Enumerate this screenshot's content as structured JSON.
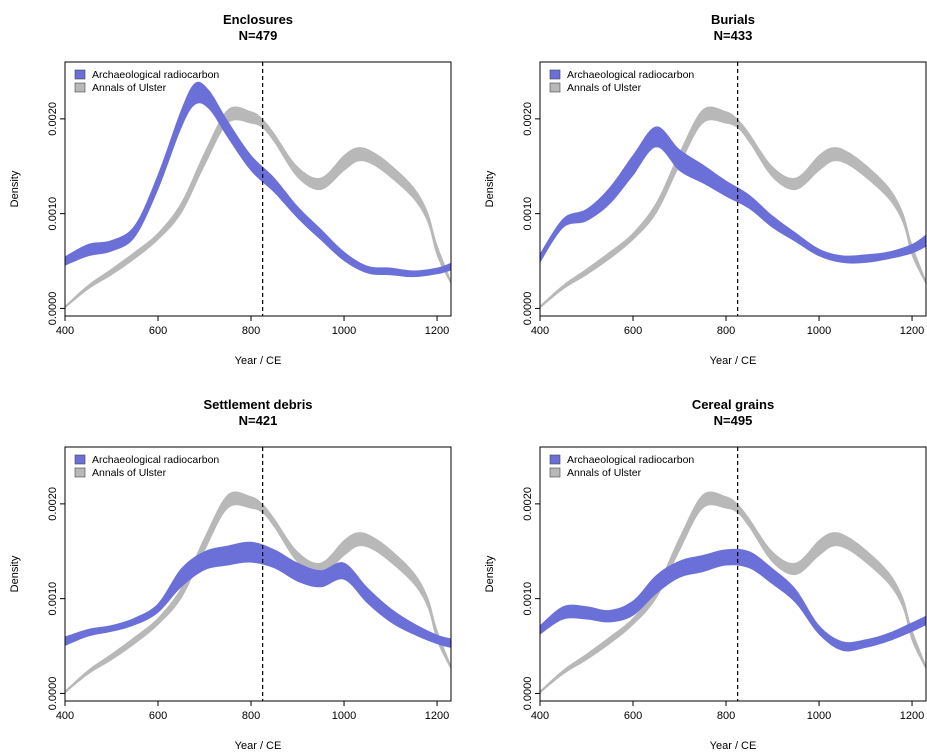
{
  "figure": {
    "xlabel": "Year / CE",
    "ylabel": "Density",
    "legend": [
      "Archaeological radiocarbon",
      "Annals of Ulster"
    ]
  },
  "colors": {
    "radiocarbon": "#6b6fd8",
    "annals": "#b8b8b8",
    "axis": "#000000"
  },
  "chart_data": [
    {
      "type": "area",
      "title": "Enclosures",
      "subtitle": "N=479",
      "xlabel": "Year / CE",
      "ylabel": "Density",
      "xlim": [
        400,
        1230
      ],
      "ylim": [
        -8e-05,
        0.0026
      ],
      "xticks": [
        "400",
        "600",
        "800",
        "1000",
        "1200"
      ],
      "yticks": [
        "0.0000",
        "0.0010",
        "0.0020"
      ],
      "vline": 825,
      "legend": "top-left",
      "series": [
        {
          "name": "Archaeological radiocarbon",
          "x": [
            400,
            450,
            500,
            550,
            600,
            650,
            680,
            710,
            750,
            800,
            850,
            900,
            950,
            1000,
            1050,
            1100,
            1150,
            1200,
            1230
          ],
          "lower": [
            0.00045,
            0.00055,
            0.0006,
            0.00075,
            0.00125,
            0.0019,
            0.00215,
            0.0021,
            0.0018,
            0.00145,
            0.00122,
            0.00095,
            0.00072,
            0.0005,
            0.00037,
            0.00035,
            0.00033,
            0.00036,
            0.0004
          ],
          "upper": [
            0.00055,
            0.00068,
            0.00072,
            0.00088,
            0.00142,
            0.0021,
            0.00238,
            0.0023,
            0.00198,
            0.00162,
            0.00138,
            0.00108,
            0.00084,
            0.0006,
            0.00045,
            0.00043,
            0.0004,
            0.00043,
            0.00048
          ]
        },
        {
          "name": "Annals of Ulster",
          "x": [
            400,
            450,
            500,
            550,
            600,
            650,
            700,
            750,
            800,
            825,
            850,
            900,
            950,
            1000,
            1030,
            1060,
            1100,
            1150,
            1180,
            1200,
            1230
          ],
          "lower": [
            0.0,
            0.0002,
            0.00035,
            0.00052,
            0.00072,
            0.001,
            0.0015,
            0.00195,
            0.00195,
            0.0019,
            0.00175,
            0.00138,
            0.00125,
            0.00145,
            0.00155,
            0.00152,
            0.00138,
            0.00115,
            0.0009,
            0.00055,
            0.00025
          ],
          "upper": [
            3e-05,
            0.00025,
            0.00042,
            0.0006,
            0.0008,
            0.00112,
            0.00165,
            0.0021,
            0.00208,
            0.002,
            0.00185,
            0.0015,
            0.00138,
            0.00162,
            0.0017,
            0.00166,
            0.00152,
            0.00128,
            0.00102,
            0.00068,
            0.0003
          ]
        }
      ]
    },
    {
      "type": "area",
      "title": "Burials",
      "subtitle": "N=433",
      "xlabel": "Year / CE",
      "ylabel": "Density",
      "xlim": [
        400,
        1230
      ],
      "ylim": [
        -8e-05,
        0.0026
      ],
      "xticks": [
        "400",
        "600",
        "800",
        "1000",
        "1200"
      ],
      "yticks": [
        "0.0000",
        "0.0010",
        "0.0020"
      ],
      "vline": 825,
      "legend": "top-left",
      "series": [
        {
          "name": "Archaeological radiocarbon",
          "x": [
            400,
            450,
            500,
            550,
            600,
            650,
            700,
            750,
            800,
            850,
            900,
            950,
            1000,
            1050,
            1100,
            1150,
            1200,
            1230
          ],
          "lower": [
            0.00048,
            0.00085,
            0.00092,
            0.0011,
            0.0014,
            0.0017,
            0.00145,
            0.00132,
            0.00118,
            0.00105,
            0.00085,
            0.0007,
            0.00055,
            0.00048,
            0.00048,
            0.00052,
            0.00058,
            0.00065
          ],
          "upper": [
            0.00058,
            0.00095,
            0.00105,
            0.00128,
            0.00162,
            0.00192,
            0.00168,
            0.00152,
            0.00135,
            0.0012,
            0.00098,
            0.0008,
            0.00063,
            0.00056,
            0.00057,
            0.0006,
            0.00068,
            0.00078
          ]
        },
        {
          "name": "Annals of Ulster",
          "x": [
            400,
            450,
            500,
            550,
            600,
            650,
            700,
            750,
            800,
            825,
            850,
            900,
            950,
            1000,
            1030,
            1060,
            1100,
            1150,
            1180,
            1200,
            1230
          ],
          "lower": [
            0.0,
            0.0002,
            0.00035,
            0.00052,
            0.00072,
            0.001,
            0.0015,
            0.00195,
            0.00195,
            0.0019,
            0.00175,
            0.00138,
            0.00125,
            0.00145,
            0.00155,
            0.00152,
            0.00138,
            0.00115,
            0.0009,
            0.00055,
            0.00025
          ],
          "upper": [
            3e-05,
            0.00025,
            0.00042,
            0.0006,
            0.0008,
            0.00112,
            0.00165,
            0.0021,
            0.00208,
            0.002,
            0.00185,
            0.0015,
            0.00138,
            0.00162,
            0.0017,
            0.00166,
            0.00152,
            0.00128,
            0.00102,
            0.00068,
            0.0003
          ]
        }
      ]
    },
    {
      "type": "area",
      "title": "Settlement debris",
      "subtitle": "N=421",
      "xlabel": "Year / CE",
      "ylabel": "Density",
      "xlim": [
        400,
        1230
      ],
      "ylim": [
        -8e-05,
        0.0026
      ],
      "xticks": [
        "400",
        "600",
        "800",
        "1000",
        "1200"
      ],
      "yticks": [
        "0.0000",
        "0.0010",
        "0.0020"
      ],
      "vline": 825,
      "legend": "top-left",
      "series": [
        {
          "name": "Archaeological radiocarbon",
          "x": [
            400,
            450,
            500,
            550,
            600,
            650,
            700,
            750,
            800,
            850,
            900,
            950,
            1000,
            1050,
            1100,
            1150,
            1200,
            1230
          ],
          "lower": [
            0.0005,
            0.0006,
            0.00065,
            0.00072,
            0.00085,
            0.00112,
            0.0013,
            0.00135,
            0.00138,
            0.00132,
            0.00118,
            0.00112,
            0.0012,
            0.00095,
            0.00075,
            0.00062,
            0.00052,
            0.00048
          ],
          "upper": [
            0.0006,
            0.00068,
            0.00072,
            0.0008,
            0.00095,
            0.00132,
            0.0015,
            0.00156,
            0.0016,
            0.00152,
            0.00138,
            0.0013,
            0.00138,
            0.00112,
            0.0009,
            0.00074,
            0.00062,
            0.00058
          ]
        },
        {
          "name": "Annals of Ulster",
          "x": [
            400,
            450,
            500,
            550,
            600,
            650,
            700,
            750,
            800,
            825,
            850,
            900,
            950,
            1000,
            1030,
            1060,
            1100,
            1150,
            1180,
            1200,
            1230
          ],
          "lower": [
            0.0,
            0.0002,
            0.00035,
            0.00052,
            0.00072,
            0.001,
            0.0015,
            0.00195,
            0.00195,
            0.0019,
            0.00175,
            0.00138,
            0.00125,
            0.00145,
            0.00155,
            0.00152,
            0.00138,
            0.00115,
            0.0009,
            0.00055,
            0.00025
          ],
          "upper": [
            3e-05,
            0.00025,
            0.00042,
            0.0006,
            0.0008,
            0.00112,
            0.00165,
            0.0021,
            0.00208,
            0.002,
            0.00185,
            0.0015,
            0.00138,
            0.00162,
            0.0017,
            0.00166,
            0.00152,
            0.00128,
            0.00102,
            0.00068,
            0.0003
          ]
        }
      ]
    },
    {
      "type": "area",
      "title": "Cereal grains",
      "subtitle": "N=495",
      "xlabel": "Year / CE",
      "ylabel": "Density",
      "xlim": [
        400,
        1230
      ],
      "ylim": [
        -8e-05,
        0.0026
      ],
      "xticks": [
        "400",
        "600",
        "800",
        "1000",
        "1200"
      ],
      "yticks": [
        "0.0000",
        "0.0010",
        "0.0020"
      ],
      "vline": 825,
      "legend": "top-left",
      "series": [
        {
          "name": "Archaeological radiocarbon",
          "x": [
            400,
            450,
            500,
            550,
            600,
            650,
            700,
            750,
            800,
            850,
            900,
            950,
            1000,
            1050,
            1100,
            1150,
            1200,
            1230
          ],
          "lower": [
            0.00062,
            0.00078,
            0.00078,
            0.00075,
            0.00082,
            0.00105,
            0.00122,
            0.00128,
            0.00135,
            0.00132,
            0.00115,
            0.00095,
            0.00062,
            0.00045,
            0.00048,
            0.00055,
            0.00065,
            0.00072
          ],
          "upper": [
            0.00072,
            0.00092,
            0.00092,
            0.00088,
            0.00098,
            0.00125,
            0.0014,
            0.00146,
            0.00152,
            0.0015,
            0.00132,
            0.0011,
            0.00072,
            0.00055,
            0.00057,
            0.00064,
            0.00075,
            0.00082
          ]
        },
        {
          "name": "Annals of Ulster",
          "x": [
            400,
            450,
            500,
            550,
            600,
            650,
            700,
            750,
            800,
            825,
            850,
            900,
            950,
            1000,
            1030,
            1060,
            1100,
            1150,
            1180,
            1200,
            1230
          ],
          "lower": [
            0.0,
            0.0002,
            0.00035,
            0.00052,
            0.00072,
            0.001,
            0.0015,
            0.00195,
            0.00195,
            0.0019,
            0.00175,
            0.00138,
            0.00125,
            0.00145,
            0.00155,
            0.00152,
            0.00138,
            0.00115,
            0.0009,
            0.00055,
            0.00025
          ],
          "upper": [
            3e-05,
            0.00025,
            0.00042,
            0.0006,
            0.0008,
            0.00112,
            0.00165,
            0.0021,
            0.00208,
            0.002,
            0.00185,
            0.0015,
            0.00138,
            0.00162,
            0.0017,
            0.00166,
            0.00152,
            0.00128,
            0.00102,
            0.00068,
            0.0003
          ]
        }
      ]
    }
  ]
}
